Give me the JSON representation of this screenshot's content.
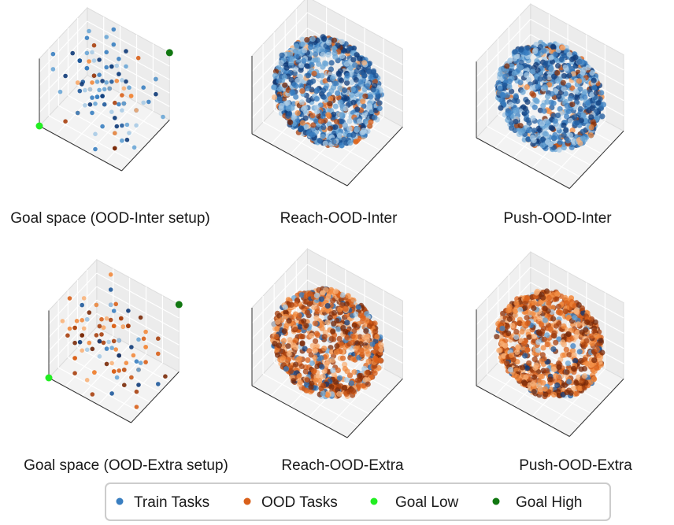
{
  "figure": {
    "panels": [
      {
        "id": "goal-inter",
        "caption": "Goal space (OOD-Inter setup)"
      },
      {
        "id": "reach-inter",
        "caption": "Reach-OOD-Inter"
      },
      {
        "id": "push-inter",
        "caption": "Push-OOD-Inter"
      },
      {
        "id": "goal-extra",
        "caption": "Goal space (OOD-Extra setup)"
      },
      {
        "id": "reach-extra",
        "caption": "Reach-OOD-Extra"
      },
      {
        "id": "push-extra",
        "caption": "Push-OOD-Extra"
      }
    ],
    "legend": [
      {
        "label": "Train Tasks",
        "color": "#3a7fc1"
      },
      {
        "label": "OOD Tasks",
        "color": "#d9601a"
      },
      {
        "label": "Goal Low",
        "color": "#22ee22"
      },
      {
        "label": "Goal High",
        "color": "#117711"
      }
    ]
  },
  "chart_data": [
    {
      "type": "scatter",
      "title": "Goal space (OOD-Inter setup)",
      "series": [
        {
          "name": "Train Tasks",
          "values": []
        },
        {
          "name": "OOD Tasks",
          "values": []
        },
        {
          "name": "Goal Low",
          "values": []
        },
        {
          "name": "Goal High",
          "values": []
        }
      ]
    },
    {
      "type": "scatter",
      "title": "Reach-OOD-Inter",
      "series": [
        {
          "name": "Train Tasks",
          "values": []
        },
        {
          "name": "OOD Tasks",
          "values": []
        }
      ]
    },
    {
      "type": "scatter",
      "title": "Push-OOD-Inter",
      "series": [
        {
          "name": "Train Tasks",
          "values": []
        },
        {
          "name": "OOD Tasks",
          "values": []
        }
      ]
    },
    {
      "type": "scatter",
      "title": "Goal space (OOD-Extra setup)",
      "series": [
        {
          "name": "Train Tasks",
          "values": []
        },
        {
          "name": "OOD Tasks",
          "values": []
        },
        {
          "name": "Goal Low",
          "values": []
        },
        {
          "name": "Goal High",
          "values": []
        }
      ]
    },
    {
      "type": "scatter",
      "title": "Reach-OOD-Extra",
      "series": [
        {
          "name": "Train Tasks",
          "values": []
        },
        {
          "name": "OOD Tasks",
          "values": []
        }
      ]
    },
    {
      "type": "scatter",
      "title": "Push-OOD-Extra",
      "series": [
        {
          "name": "Train Tasks",
          "values": []
        },
        {
          "name": "OOD Tasks",
          "values": []
        }
      ]
    }
  ]
}
